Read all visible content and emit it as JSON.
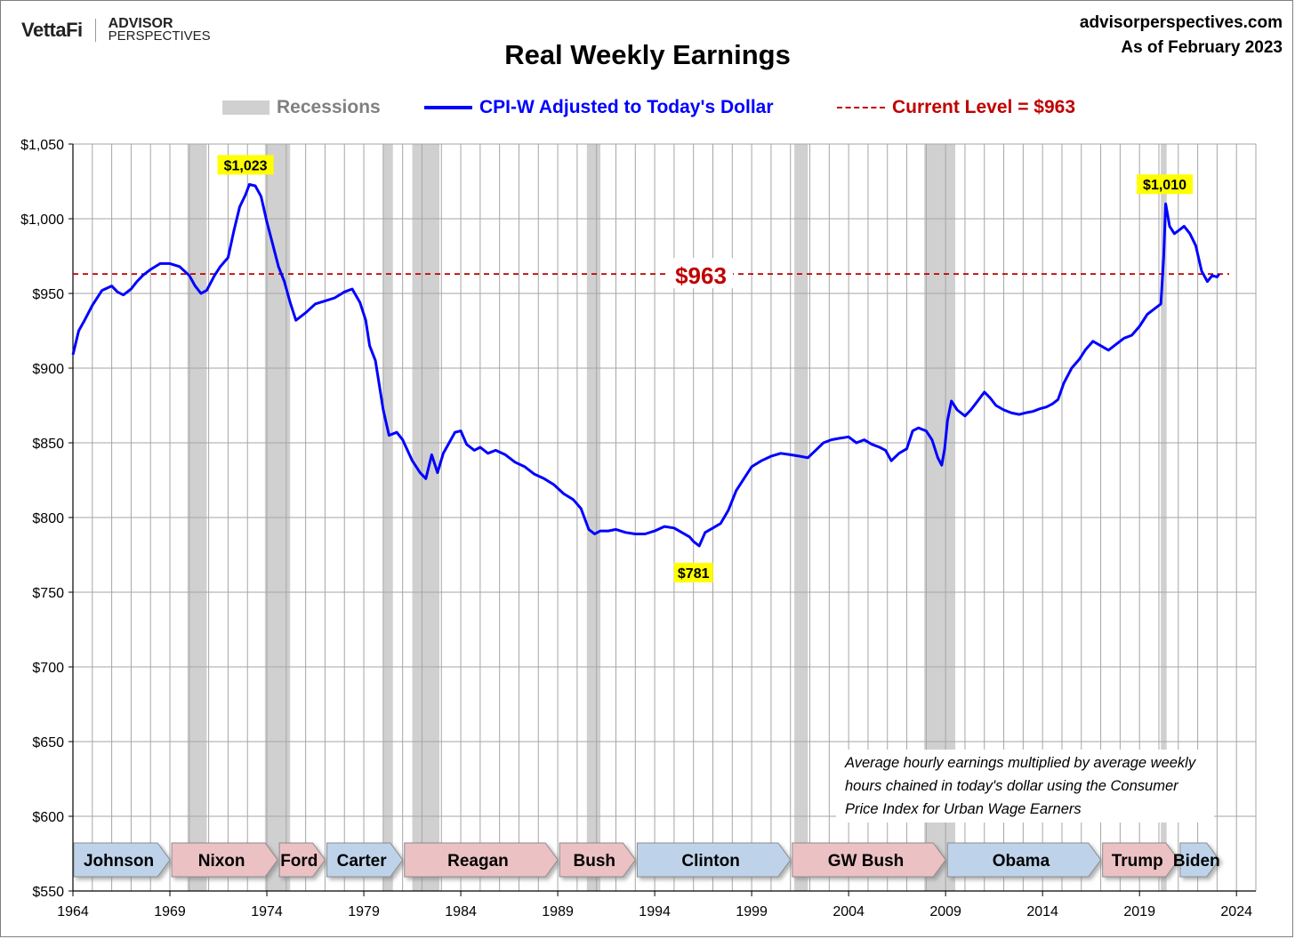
{
  "header": {
    "logo_vettafi": "VettaFi",
    "logo_ap_line1": "ADVISOR",
    "logo_ap_line2": "PERSPECTIVES",
    "site": "advisorperspectives.com",
    "as_of": "As of February 2023"
  },
  "note": "Average hourly earnings multiplied by average weekly hours chained in today's dollar using the Consumer Price Index for Urban Wage Earners",
  "colors": {
    "series": "#0000ff",
    "current_level": "#c00000",
    "recession": "#d0d0d0",
    "democrat": "#bed3ea",
    "republican": "#ebc1c4",
    "callout": "#ffff00"
  },
  "chart_data": {
    "type": "line",
    "title": "Real Weekly Earnings",
    "legend": [
      {
        "name": "Recessions",
        "color": "#bfbfbf"
      },
      {
        "name": "CPI-W Adjusted to Today's Dollar",
        "color": "#0000ff"
      },
      {
        "name": "Current Level = $963",
        "color": "#c00000"
      }
    ],
    "xlim": [
      1964,
      2025
    ],
    "ylim": [
      550,
      1050
    ],
    "x_ticks": [
      "1964",
      "1969",
      "1974",
      "1979",
      "1984",
      "1989",
      "1994",
      "1999",
      "2004",
      "2009",
      "2014",
      "2019",
      "2024"
    ],
    "y_ticks": [
      "$550",
      "$600",
      "$650",
      "$700",
      "$750",
      "$800",
      "$850",
      "$900",
      "$950",
      "$1,000",
      "$1,050"
    ],
    "grid": true,
    "current_level": 963,
    "current_level_label": "$963",
    "annotations": [
      {
        "label": "$1,023",
        "x": 1972.9,
        "y": 1023
      },
      {
        "label": "$1,010",
        "x": 2020.3,
        "y": 1010
      },
      {
        "label": "$781",
        "x": 1996.0,
        "y": 781
      }
    ],
    "recessions": [
      [
        1969.9,
        1970.9
      ],
      [
        1973.9,
        1975.2
      ],
      [
        1980.0,
        1980.5
      ],
      [
        1981.5,
        1982.9
      ],
      [
        1990.5,
        1991.2
      ],
      [
        2001.2,
        2001.9
      ],
      [
        2007.9,
        2009.5
      ],
      [
        2020.1,
        2020.4
      ]
    ],
    "presidents": [
      {
        "name": "Johnson",
        "start": 1964.0,
        "end": 1969.05,
        "party": "D"
      },
      {
        "name": "Nixon",
        "start": 1969.05,
        "end": 1974.6,
        "party": "R"
      },
      {
        "name": "Ford",
        "start": 1974.6,
        "end": 1977.05,
        "party": "R"
      },
      {
        "name": "Carter",
        "start": 1977.05,
        "end": 1981.05,
        "party": "D"
      },
      {
        "name": "Reagan",
        "start": 1981.05,
        "end": 1989.05,
        "party": "R"
      },
      {
        "name": "Bush",
        "start": 1989.05,
        "end": 1993.05,
        "party": "R"
      },
      {
        "name": "Clinton",
        "start": 1993.05,
        "end": 2001.05,
        "party": "D"
      },
      {
        "name": "GW Bush",
        "start": 2001.05,
        "end": 2009.05,
        "party": "R"
      },
      {
        "name": "Obama",
        "start": 2009.05,
        "end": 2017.05,
        "party": "D"
      },
      {
        "name": "Trump",
        "start": 2017.05,
        "end": 2021.05,
        "party": "R"
      },
      {
        "name": "Biden",
        "start": 2021.05,
        "end": 2023.15,
        "party": "D"
      }
    ],
    "series": [
      {
        "name": "CPI-W Adjusted to Today's Dollar",
        "x": [
          1964.0,
          1964.3,
          1964.6,
          1965.0,
          1965.5,
          1966.0,
          1966.3,
          1966.6,
          1967.0,
          1967.3,
          1967.6,
          1968.0,
          1968.5,
          1969.0,
          1969.5,
          1970.0,
          1970.3,
          1970.6,
          1970.9,
          1971.3,
          1971.6,
          1972.0,
          1972.3,
          1972.6,
          1972.9,
          1973.1,
          1973.4,
          1973.7,
          1974.0,
          1974.3,
          1974.6,
          1974.9,
          1975.2,
          1975.5,
          1976.0,
          1976.5,
          1977.0,
          1977.5,
          1978.0,
          1978.4,
          1978.8,
          1979.1,
          1979.3,
          1979.6,
          1980.0,
          1980.3,
          1980.7,
          1981.0,
          1981.5,
          1981.9,
          1982.2,
          1982.5,
          1982.8,
          1983.1,
          1983.4,
          1983.7,
          1984.0,
          1984.3,
          1984.7,
          1985.0,
          1985.4,
          1985.8,
          1986.3,
          1986.8,
          1987.3,
          1987.8,
          1988.3,
          1988.8,
          1989.3,
          1989.8,
          1990.2,
          1990.6,
          1990.9,
          1991.2,
          1991.6,
          1992.0,
          1992.5,
          1993.0,
          1993.5,
          1994.0,
          1994.5,
          1995.0,
          1995.4,
          1995.8,
          1996.0,
          1996.3,
          1996.6,
          1997.0,
          1997.4,
          1997.8,
          1998.2,
          1998.6,
          1999.0,
          1999.5,
          2000.0,
          2000.5,
          2001.0,
          2001.5,
          2001.9,
          2002.3,
          2002.7,
          2003.1,
          2003.5,
          2004.0,
          2004.4,
          2004.8,
          2005.2,
          2005.6,
          2005.9,
          2006.2,
          2006.6,
          2007.0,
          2007.3,
          2007.6,
          2008.0,
          2008.3,
          2008.6,
          2008.8,
          2008.95,
          2009.1,
          2009.3,
          2009.6,
          2010.0,
          2010.3,
          2010.6,
          2011.0,
          2011.3,
          2011.6,
          2012.0,
          2012.4,
          2012.8,
          2013.1,
          2013.5,
          2013.9,
          2014.2,
          2014.5,
          2014.8,
          2015.1,
          2015.5,
          2015.9,
          2016.2,
          2016.6,
          2017.0,
          2017.4,
          2017.8,
          2018.2,
          2018.6,
          2019.0,
          2019.4,
          2019.8,
          2020.1,
          2020.25,
          2020.35,
          2020.55,
          2020.8,
          2021.1,
          2021.3,
          2021.6,
          2021.9,
          2022.2,
          2022.5,
          2022.75,
          2023.0,
          2023.1
        ],
        "values": [
          909,
          925,
          932,
          942,
          952,
          955,
          951,
          949,
          953,
          958,
          962,
          966,
          970,
          970,
          968,
          962,
          955,
          950,
          952,
          962,
          968,
          974,
          992,
          1008,
          1016,
          1023,
          1022,
          1015,
          998,
          983,
          968,
          958,
          944,
          932,
          937,
          943,
          945,
          947,
          951,
          953,
          944,
          932,
          915,
          905,
          872,
          855,
          857,
          852,
          838,
          830,
          826,
          842,
          830,
          843,
          850,
          857,
          858,
          849,
          845,
          847,
          843,
          845,
          842,
          837,
          834,
          829,
          826,
          822,
          816,
          812,
          806,
          792,
          789,
          791,
          791,
          792,
          790,
          789,
          789,
          791,
          794,
          793,
          790,
          787,
          784,
          781,
          790,
          793,
          796,
          805,
          818,
          826,
          834,
          838,
          841,
          843,
          842,
          841,
          840,
          845,
          850,
          852,
          853,
          854,
          850,
          852,
          849,
          847,
          845,
          838,
          843,
          846,
          858,
          860,
          858,
          852,
          840,
          835,
          846,
          865,
          878,
          872,
          868,
          872,
          877,
          884,
          880,
          875,
          872,
          870,
          869,
          870,
          871,
          873,
          874,
          876,
          879,
          890,
          900,
          906,
          912,
          918,
          915,
          912,
          916,
          920,
          922,
          928,
          936,
          940,
          943,
          975,
          1010,
          995,
          990,
          993,
          995,
          990,
          982,
          965,
          958,
          962,
          961,
          963
        ]
      }
    ]
  }
}
